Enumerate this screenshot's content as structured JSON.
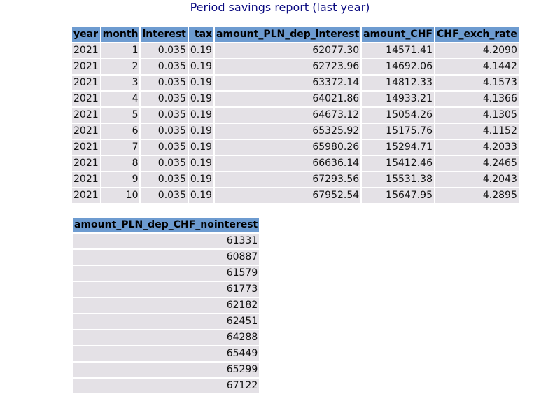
{
  "title": "Period savings report (last year)",
  "colors": {
    "title": "#0b0b80",
    "header_bg": "#6d9bd0",
    "cell_bg": "#e4e1e6"
  },
  "table1": {
    "columns": [
      "year",
      "month",
      "interest",
      "tax",
      "amount_PLN_dep_interest",
      "amount_CHF",
      "CHF_exch_rate"
    ],
    "rows": [
      [
        "2021",
        "1",
        "0.035",
        "0.19",
        "62077.30",
        "14571.41",
        "4.2090"
      ],
      [
        "2021",
        "2",
        "0.035",
        "0.19",
        "62723.96",
        "14692.06",
        "4.1442"
      ],
      [
        "2021",
        "3",
        "0.035",
        "0.19",
        "63372.14",
        "14812.33",
        "4.1573"
      ],
      [
        "2021",
        "4",
        "0.035",
        "0.19",
        "64021.86",
        "14933.21",
        "4.1366"
      ],
      [
        "2021",
        "5",
        "0.035",
        "0.19",
        "64673.12",
        "15054.26",
        "4.1305"
      ],
      [
        "2021",
        "6",
        "0.035",
        "0.19",
        "65325.92",
        "15175.76",
        "4.1152"
      ],
      [
        "2021",
        "7",
        "0.035",
        "0.19",
        "65980.26",
        "15294.71",
        "4.2033"
      ],
      [
        "2021",
        "8",
        "0.035",
        "0.19",
        "66636.14",
        "15412.46",
        "4.2465"
      ],
      [
        "2021",
        "9",
        "0.035",
        "0.19",
        "67293.56",
        "15531.38",
        "4.2043"
      ],
      [
        "2021",
        "10",
        "0.035",
        "0.19",
        "67952.54",
        "15647.95",
        "4.2895"
      ]
    ]
  },
  "table2": {
    "columns": [
      "amount_PLN_dep_CHF_nointerest"
    ],
    "rows": [
      [
        "61331"
      ],
      [
        "60887"
      ],
      [
        "61579"
      ],
      [
        "61773"
      ],
      [
        "62182"
      ],
      [
        "62451"
      ],
      [
        "64288"
      ],
      [
        "65449"
      ],
      [
        "65299"
      ],
      [
        "67122"
      ]
    ]
  }
}
